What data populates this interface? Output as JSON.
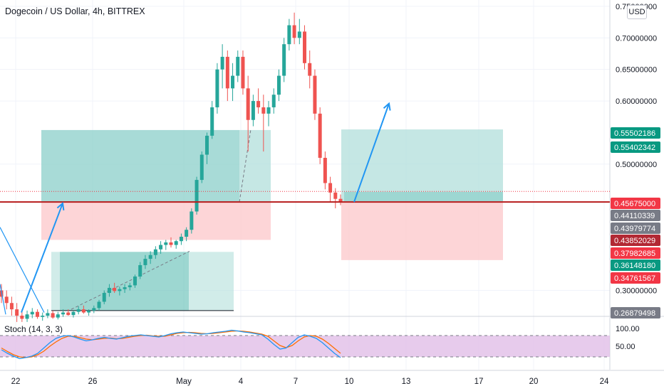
{
  "header": {
    "title": "Dogecoin / US Dollar, 4h, BITTREX"
  },
  "currency_button": {
    "label": "USD"
  },
  "price_tags": [
    {
      "text": "0.55502186",
      "bg": "#089981",
      "price": 0.555022
    },
    {
      "text": "0.55402342",
      "bg": "#089981",
      "price": 0.554023
    },
    {
      "text": "0.45675000",
      "bg": "#f23645",
      "price": 0.45675
    },
    {
      "text": "0.44110339",
      "bg": "#787b86",
      "price": 0.441103
    },
    {
      "text": "0.43979774",
      "bg": "#787b86",
      "price": 0.439798
    },
    {
      "text": "0.43852029",
      "bg": "#b22833",
      "price": 0.43852
    },
    {
      "text": "0.37982685",
      "bg": "#f23645",
      "price": 0.379827
    },
    {
      "text": "0.36148180",
      "bg": "#089981",
      "price": 0.361482
    },
    {
      "text": "0.34761567",
      "bg": "#f23645",
      "price": 0.347616
    },
    {
      "text": "0.26879498",
      "bg": "#787b86",
      "price": 0.268795
    }
  ],
  "indicator": {
    "label": "Stoch (14, 3, 3)"
  },
  "colors": {
    "up": "#26a69a",
    "down": "#ef5350",
    "grid": "#f0f3fa",
    "target_zone": "#b2dfdb",
    "stop_zone": "#fccbcd",
    "horizontal_line": "#b71c1c",
    "arrow": "#2196f3",
    "stoch_k": "#2196f3",
    "stoch_d": "#ff6d00",
    "stoch_band": "#e1bee7"
  },
  "chart_data": {
    "type": "candlestick",
    "y_axis": {
      "min": 0.26,
      "max": 0.76,
      "ticks": [
        "0.75000000",
        "0.70000000",
        "0.65000000",
        "0.60000000",
        "0.50000000",
        "0.30000000"
      ],
      "tick_values": [
        0.75,
        0.7,
        0.65,
        0.6,
        0.5,
        0.3
      ]
    },
    "x_axis": {
      "ticks": [
        "22",
        "26",
        "May",
        "4",
        "7",
        "10",
        "13",
        "17",
        "20",
        "24"
      ]
    },
    "horizontal_line": 0.44,
    "positions": [
      {
        "entry": 0.44,
        "target": 0.554,
        "stop": 0.38,
        "from_bar": 44,
        "to_bar": 300,
        "filled_to_bar": 280
      },
      {
        "entry": 0.361,
        "target": 0.361,
        "stop": 0.268,
        "from_bar": 58,
        "to_bar": 254,
        "filled_to_bar": 204
      },
      {
        "entry": 0.441,
        "target": 0.555,
        "stop": 0.348,
        "from_bar": 378,
        "to_bar": 554,
        "filled_to_bar": 0
      }
    ],
    "projection_arrows": [
      {
        "from": [
          0,
          0.3
        ],
        "to": [
          66,
          0.44
        ]
      },
      {
        "from": [
          388,
          0.44
        ],
        "to": [
          427,
          0.596
        ]
      }
    ],
    "stochastic": {
      "upper": 80,
      "lower": 20,
      "ticks": [
        "100.00",
        "50.00"
      ],
      "tick_values": [
        100,
        50
      ]
    },
    "ohlc": [
      [
        0.3,
        0.31,
        0.28,
        0.29
      ],
      [
        0.29,
        0.3,
        0.27,
        0.28
      ],
      [
        0.28,
        0.29,
        0.26,
        0.27
      ],
      [
        0.27,
        0.28,
        0.25,
        0.26
      ],
      [
        0.26,
        0.27,
        0.25,
        0.255
      ],
      [
        0.255,
        0.268,
        0.25,
        0.262
      ],
      [
        0.262,
        0.272,
        0.256,
        0.266
      ],
      [
        0.266,
        0.27,
        0.255,
        0.258
      ],
      [
        0.258,
        0.265,
        0.252,
        0.26
      ],
      [
        0.26,
        0.27,
        0.256,
        0.264
      ],
      [
        0.264,
        0.268,
        0.255,
        0.257
      ],
      [
        0.257,
        0.266,
        0.254,
        0.262
      ],
      [
        0.262,
        0.27,
        0.258,
        0.265
      ],
      [
        0.265,
        0.27,
        0.26,
        0.261
      ],
      [
        0.261,
        0.268,
        0.257,
        0.266
      ],
      [
        0.266,
        0.275,
        0.262,
        0.27
      ],
      [
        0.27,
        0.276,
        0.263,
        0.265
      ],
      [
        0.265,
        0.27,
        0.26,
        0.268
      ],
      [
        0.268,
        0.276,
        0.264,
        0.272
      ],
      [
        0.272,
        0.285,
        0.268,
        0.282
      ],
      [
        0.282,
        0.3,
        0.278,
        0.296
      ],
      [
        0.296,
        0.31,
        0.29,
        0.304
      ],
      [
        0.304,
        0.312,
        0.296,
        0.299
      ],
      [
        0.299,
        0.306,
        0.292,
        0.302
      ],
      [
        0.302,
        0.31,
        0.296,
        0.305
      ],
      [
        0.305,
        0.312,
        0.3,
        0.308
      ],
      [
        0.308,
        0.325,
        0.304,
        0.322
      ],
      [
        0.322,
        0.345,
        0.318,
        0.34
      ],
      [
        0.34,
        0.356,
        0.334,
        0.35
      ],
      [
        0.35,
        0.362,
        0.342,
        0.356
      ],
      [
        0.356,
        0.37,
        0.35,
        0.365
      ],
      [
        0.365,
        0.378,
        0.358,
        0.372
      ],
      [
        0.372,
        0.38,
        0.364,
        0.376
      ],
      [
        0.376,
        0.384,
        0.368,
        0.372
      ],
      [
        0.372,
        0.38,
        0.366,
        0.378
      ],
      [
        0.378,
        0.39,
        0.372,
        0.385
      ],
      [
        0.385,
        0.4,
        0.378,
        0.396
      ],
      [
        0.396,
        0.43,
        0.39,
        0.425
      ],
      [
        0.425,
        0.48,
        0.42,
        0.475
      ],
      [
        0.475,
        0.52,
        0.47,
        0.515
      ],
      [
        0.515,
        0.55,
        0.5,
        0.545
      ],
      [
        0.545,
        0.6,
        0.54,
        0.59
      ],
      [
        0.59,
        0.66,
        0.58,
        0.65
      ],
      [
        0.65,
        0.69,
        0.62,
        0.67
      ],
      [
        0.67,
        0.68,
        0.6,
        0.62
      ],
      [
        0.62,
        0.66,
        0.6,
        0.64
      ],
      [
        0.64,
        0.68,
        0.63,
        0.67
      ],
      [
        0.67,
        0.68,
        0.61,
        0.62
      ],
      [
        0.62,
        0.64,
        0.52,
        0.57
      ],
      [
        0.57,
        0.61,
        0.56,
        0.6
      ],
      [
        0.6,
        0.62,
        0.58,
        0.59
      ],
      [
        0.59,
        0.61,
        0.52,
        0.58
      ],
      [
        0.58,
        0.6,
        0.56,
        0.59
      ],
      [
        0.59,
        0.62,
        0.58,
        0.61
      ],
      [
        0.61,
        0.65,
        0.6,
        0.64
      ],
      [
        0.64,
        0.7,
        0.63,
        0.69
      ],
      [
        0.69,
        0.73,
        0.68,
        0.72
      ],
      [
        0.72,
        0.74,
        0.69,
        0.7
      ],
      [
        0.7,
        0.73,
        0.69,
        0.71
      ],
      [
        0.71,
        0.72,
        0.65,
        0.66
      ],
      [
        0.66,
        0.68,
        0.62,
        0.64
      ],
      [
        0.64,
        0.65,
        0.57,
        0.58
      ],
      [
        0.58,
        0.59,
        0.5,
        0.51
      ],
      [
        0.51,
        0.52,
        0.46,
        0.47
      ],
      [
        0.47,
        0.48,
        0.44,
        0.455
      ],
      [
        0.455,
        0.462,
        0.43,
        0.445
      ],
      [
        0.445,
        0.452,
        0.435,
        0.44
      ]
    ],
    "stoch_k": [
      40,
      30,
      22,
      15,
      18,
      22,
      30,
      45,
      60,
      72,
      78,
      80,
      76,
      70,
      65,
      68,
      72,
      75,
      72,
      70,
      74,
      78,
      80,
      82,
      80,
      78,
      76,
      80,
      85,
      88,
      90,
      88,
      86,
      84,
      85,
      88,
      90,
      92,
      95,
      93,
      90,
      88,
      85,
      82,
      70,
      55,
      42,
      45,
      60,
      75,
      82,
      78,
      72,
      60,
      45,
      30,
      18
    ],
    "stoch_d": [
      45,
      35,
      26,
      20,
      18,
      20,
      26,
      36,
      50,
      62,
      72,
      78,
      78,
      74,
      70,
      68,
      70,
      72,
      73,
      71,
      72,
      75,
      78,
      80,
      81,
      79,
      78,
      78,
      82,
      86,
      88,
      89,
      88,
      86,
      85,
      86,
      88,
      90,
      92,
      93,
      92,
      90,
      87,
      84,
      78,
      65,
      52,
      46,
      52,
      65,
      76,
      80,
      78,
      70,
      58,
      44,
      30
    ]
  }
}
